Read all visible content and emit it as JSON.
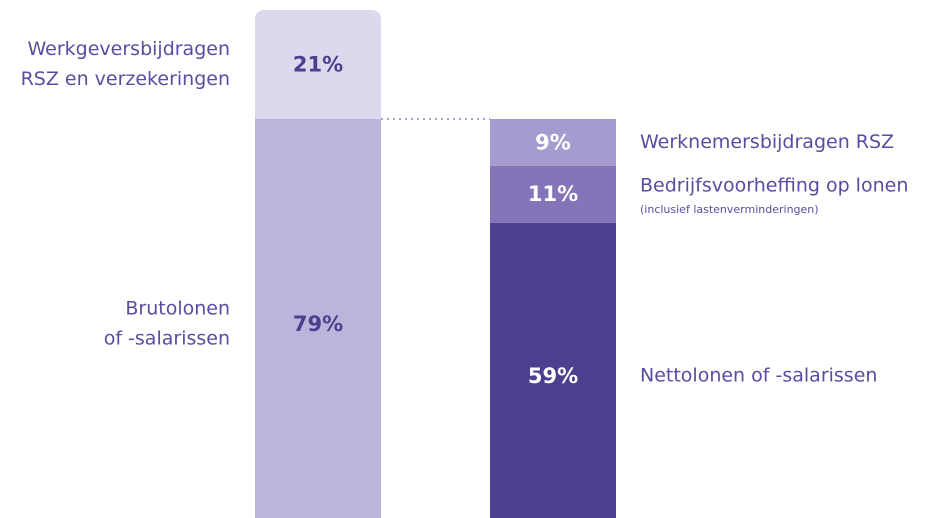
{
  "chart_data": {
    "type": "stacked-bar",
    "ylim": [
      0,
      100
    ],
    "bars": [
      {
        "segments": [
          {
            "label": [
              "Brutolonen",
              "of -salarissen"
            ],
            "value": 79,
            "value_label": "79%",
            "color": "#bbb5dc",
            "label_color": "#4b3f8f"
          },
          {
            "label": [
              "Werkgeversbijdragen",
              "RSZ en verzekeringen"
            ],
            "value": 21,
            "value_label": "21%",
            "color": "#dcd8ed",
            "label_color": "#4b3f8f"
          }
        ]
      },
      {
        "segments": [
          {
            "label": [
              "Nettolonen of -salarissen"
            ],
            "value": 59,
            "value_label": "59%",
            "color": "#4b3f8f",
            "label_color": "#ffffff"
          },
          {
            "label": [
              "Bedrijfsvoorheffing op lonen"
            ],
            "note": "(inclusief lastenverminderingen)",
            "value": 11,
            "value_label": "11%",
            "color": "#8474b8",
            "label_color": "#ffffff"
          },
          {
            "label": [
              "Werknemersbijdragen RSZ"
            ],
            "value": 9,
            "value_label": "9%",
            "color": "#a59bcf",
            "label_color": "#ffffff"
          }
        ]
      }
    ]
  }
}
